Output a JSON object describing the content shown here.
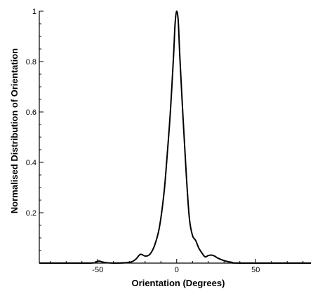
{
  "chart_data": {
    "type": "line",
    "title": "",
    "xlabel": "Orientation (Degrees)",
    "ylabel": "Normalised Distribution of Orientation",
    "xlim": [
      -87,
      85
    ],
    "ylim": [
      0,
      1
    ],
    "x_ticks": [
      -50,
      0,
      50
    ],
    "x_tick_labels": [
      "-50",
      "0",
      "50"
    ],
    "y_ticks": [
      0.2,
      0.4,
      0.6,
      0.8,
      1
    ],
    "y_tick_labels": [
      "0.2",
      "0.4",
      "0.6",
      "0.8",
      "1"
    ],
    "grid": false,
    "line_color": "#000000",
    "series": [
      {
        "x": [
          -87,
          -55,
          -51,
          -49,
          -46,
          -40,
          -30,
          -26,
          -23,
          -20,
          -17,
          -14,
          -11,
          -8,
          -6,
          -4,
          -2,
          -1,
          0,
          1,
          2,
          4,
          6,
          8,
          10,
          12,
          14,
          16,
          18,
          20,
          22,
          24,
          26,
          30,
          35,
          40,
          85
        ],
        "y": [
          0,
          0,
          0.006,
          0.008,
          0.003,
          0,
          0.003,
          0.015,
          0.035,
          0.028,
          0.035,
          0.07,
          0.14,
          0.28,
          0.43,
          0.6,
          0.82,
          0.95,
          1.0,
          0.96,
          0.82,
          0.58,
          0.36,
          0.18,
          0.11,
          0.09,
          0.06,
          0.04,
          0.025,
          0.03,
          0.032,
          0.028,
          0.02,
          0.01,
          0.003,
          0,
          0
        ]
      }
    ]
  }
}
